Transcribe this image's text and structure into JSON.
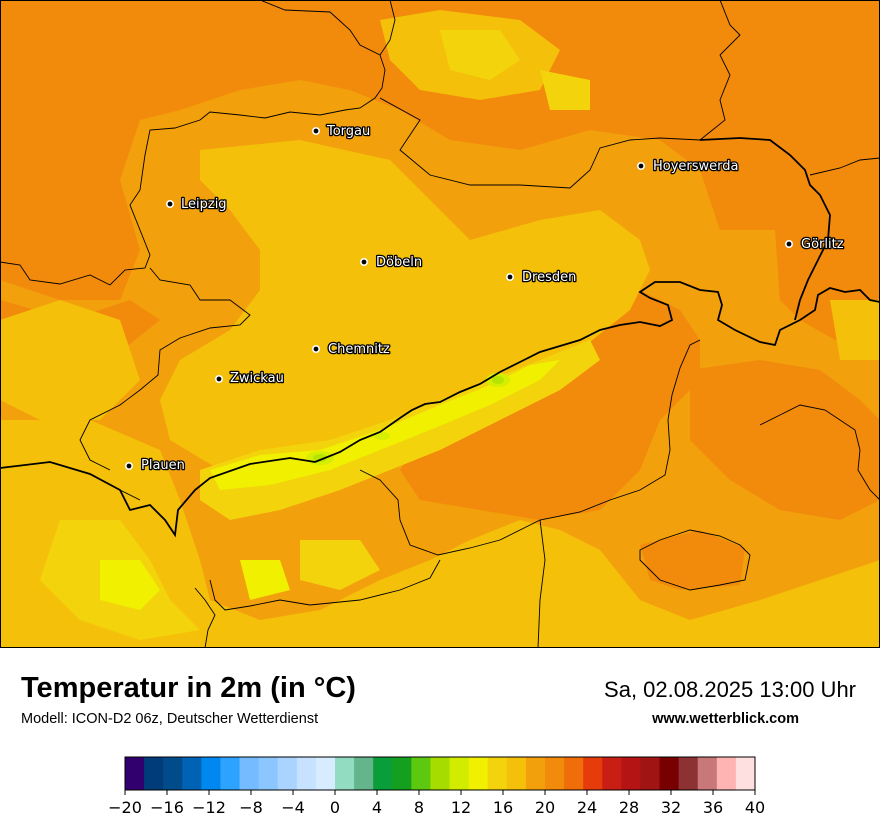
{
  "map": {
    "colors": {
      "base": "#f2a00b",
      "warm": "#f28a0c",
      "mid": "#f4c00a",
      "pale": "#f3d40c",
      "cool": "#f0f000",
      "cooler": "#d6ee00",
      "coolest": "#b4e400",
      "border": "#000000"
    },
    "cities": [
      {
        "name": "Torgau"
      },
      {
        "name": "Hoyerswerda"
      },
      {
        "name": "Leipzig"
      },
      {
        "name": "Görlitz"
      },
      {
        "name": "Döbeln"
      },
      {
        "name": "Dresden"
      },
      {
        "name": "Chemnitz"
      },
      {
        "name": "Zwickau"
      },
      {
        "name": "Plauen"
      }
    ]
  },
  "footer": {
    "title": "Temperatur in 2m (in °C)",
    "subtitle": "Modell: ICON-D2 06z, Deutscher Wetterdienst",
    "datetime": "Sa, 02.08.2025 13:00 Uhr",
    "website": "www.wetterblick.com"
  },
  "colorbar": {
    "min": -20,
    "max": 40,
    "colors": [
      "#32006e",
      "#003c7a",
      "#004c8a",
      "#0062b4",
      "#0088f0",
      "#2da3ff",
      "#74bcff",
      "#8cc6ff",
      "#aad4ff",
      "#c6e2ff",
      "#d8ecff",
      "#92dcc2",
      "#64b48c",
      "#0a9e3a",
      "#14a01e",
      "#5cc810",
      "#a6dc00",
      "#d2ec00",
      "#f0f000",
      "#f3d40c",
      "#f4c00a",
      "#f2a00b",
      "#f28a0c",
      "#f06e0a",
      "#e63c0c",
      "#c81e14",
      "#b41414",
      "#a01414",
      "#780000",
      "#8c3232",
      "#c87878",
      "#ffb4b4",
      "#ffe0e0"
    ],
    "ticks": [
      "−20",
      "−16",
      "−12",
      "−8",
      "−4",
      "0",
      "4",
      "8",
      "12",
      "16",
      "20",
      "24",
      "28",
      "32",
      "36",
      "40"
    ]
  }
}
